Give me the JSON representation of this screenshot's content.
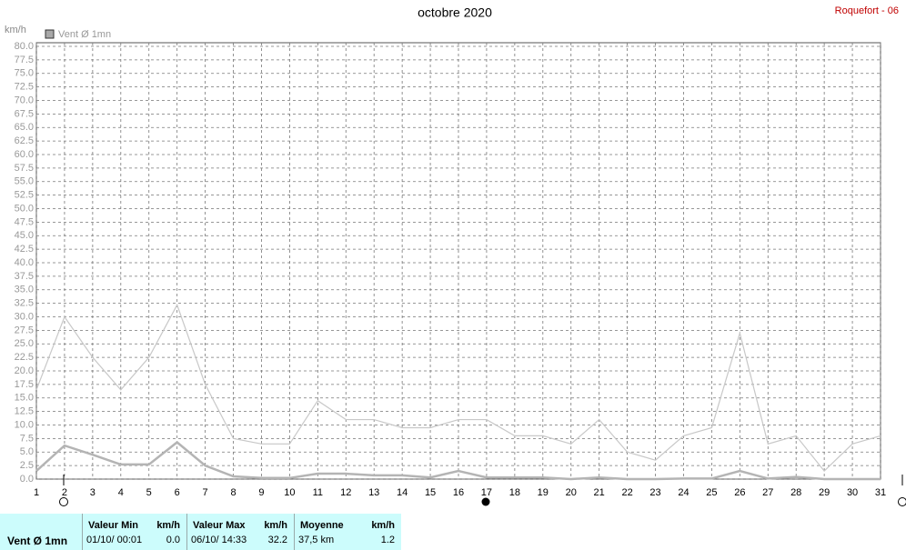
{
  "chart_data": {
    "type": "line",
    "title": "octobre 2020",
    "station": "Roquefort - 06",
    "y_label": "km/h",
    "x": [
      1,
      2,
      3,
      4,
      5,
      6,
      7,
      8,
      9,
      10,
      11,
      12,
      13,
      14,
      15,
      16,
      17,
      18,
      19,
      20,
      21,
      22,
      23,
      24,
      25,
      26,
      27,
      28,
      29,
      30,
      31
    ],
    "xlim": [
      1,
      31
    ],
    "xticks": [
      1,
      2,
      3,
      4,
      5,
      6,
      7,
      8,
      9,
      10,
      11,
      12,
      13,
      14,
      15,
      16,
      17,
      18,
      19,
      20,
      21,
      22,
      23,
      24,
      25,
      26,
      27,
      28,
      29,
      30,
      31
    ],
    "ylim": [
      0,
      80
    ],
    "yticks": [
      {
        "value": 0,
        "label": "0.0"
      },
      2.5,
      {
        "value": 5,
        "label": "5.0"
      },
      7.5,
      {
        "value": 10,
        "label": "10.0"
      },
      12.5,
      {
        "value": 15,
        "label": "15.0"
      },
      17.5,
      {
        "value": 20,
        "label": "20.0"
      },
      22.5,
      {
        "value": 25,
        "label": "25.0"
      },
      27.5,
      {
        "value": 30,
        "label": "30.0"
      },
      32.5,
      {
        "value": 35,
        "label": "35.0"
      },
      37.5,
      {
        "value": 40,
        "label": "40.0"
      },
      42.5,
      {
        "value": 45,
        "label": "45.0"
      },
      47.5,
      {
        "value": 50,
        "label": "50.0"
      },
      52.5,
      {
        "value": 55,
        "label": "55.0"
      },
      57.5,
      {
        "value": 60,
        "label": "60.0"
      },
      62.5,
      {
        "value": 65,
        "label": "65.0"
      },
      67.5,
      {
        "value": 70,
        "label": "70.0"
      },
      72.5,
      {
        "value": 75,
        "label": "75.0"
      },
      77.5,
      {
        "value": 80,
        "label": "80.0"
      }
    ],
    "grid": true,
    "series": [
      {
        "name": "Vent Ø 1mn",
        "color": "#b4b4b4",
        "values": [
          1.5,
          6.2,
          4.5,
          2.7,
          2.7,
          6.8,
          2.5,
          0.5,
          0.2,
          0.2,
          1,
          1,
          0.7,
          0.7,
          0.3,
          1.5,
          0.3,
          0.3,
          0.3,
          0,
          0.3,
          0,
          0,
          0.1,
          0.1,
          1.5,
          0.1,
          0.4,
          0,
          0,
          0
        ]
      },
      {
        "color": "#c8c8c8",
        "values": [
          16.5,
          30,
          22.5,
          16.5,
          22.5,
          32.2,
          17.5,
          7.5,
          6.5,
          6.5,
          14.5,
          11,
          11,
          9.5,
          9.5,
          11,
          11,
          8,
          8,
          6.5,
          11,
          5,
          3.5,
          8,
          9.5,
          27,
          6.5,
          8,
          1.5,
          6.5,
          8
        ]
      }
    ]
  },
  "table": {
    "label": "Vent Ø 1mn",
    "columns": [
      {
        "title": "Valeur Min",
        "unit": "km/h",
        "when": "01/10/ 00:01",
        "value": "0.0"
      },
      {
        "title": "Valeur Max",
        "unit": "km/h",
        "when": "06/10/ 14:33",
        "value": "32.2"
      },
      {
        "title": "Moyenne",
        "unit": "km/h",
        "when": "37,5 km",
        "value": "1.2"
      }
    ]
  }
}
